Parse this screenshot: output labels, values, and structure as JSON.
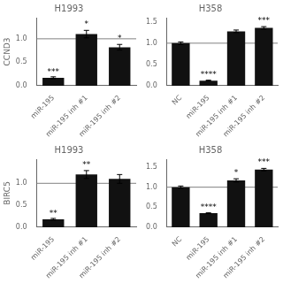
{
  "chart_data": [
    {
      "type": "bar",
      "title": "H1993",
      "ylabel": "CCND3",
      "categories": [
        "miR-195",
        "miR-195 inh #1",
        "miR-195 inh #2"
      ],
      "values": [
        0.17,
        1.1,
        0.82
      ],
      "errors": [
        0.02,
        0.08,
        0.06
      ],
      "color": "#111111",
      "ylim": [
        0,
        1.45
      ],
      "yticks": [
        {
          "value": 0,
          "label": "0.0"
        },
        0.5,
        {
          "value": 1,
          "label": "1.0"
        }
      ],
      "grid": false,
      "hline": 1.0,
      "annotations": [
        {
          "x": "miR-195",
          "y": 0.2,
          "text": "***"
        },
        {
          "x": "miR-195 inh #1",
          "y": 1.22,
          "text": "*"
        },
        {
          "x": "miR-195 inh #2",
          "y": 0.92,
          "text": "*"
        }
      ]
    },
    {
      "type": "bar",
      "title": "H358",
      "categories": [
        "NC",
        "miR-195",
        "miR-195 inh #1",
        "miR-195 inh #2"
      ],
      "values": [
        1.0,
        0.12,
        1.28,
        1.36
      ],
      "errors": [
        0.03,
        0.01,
        0.03,
        0.03
      ],
      "color": "#111111",
      "ylim": [
        0,
        1.6
      ],
      "yticks": [
        {
          "value": 0,
          "label": "0.0"
        },
        0.5,
        {
          "value": 1,
          "label": "1.0"
        },
        1.5
      ],
      "grid": false,
      "hline": 1.0,
      "annotations": [
        {
          "x": "miR-195",
          "y": 0.17,
          "text": "****"
        },
        {
          "x": "miR-195 inh #2",
          "y": 1.42,
          "text": "***"
        }
      ]
    },
    {
      "type": "bar",
      "title": "H1993",
      "ylabel": "BIRC5",
      "categories": [
        "miR-195",
        "miR-195 inh #1",
        "miR-195 inh #2"
      ],
      "values": [
        0.18,
        1.2,
        1.1
      ],
      "errors": [
        0.02,
        0.09,
        0.1
      ],
      "color": "#111111",
      "ylim": [
        0,
        1.55
      ],
      "yticks": [
        {
          "value": 0,
          "label": "0.0"
        },
        0.5,
        {
          "value": 1,
          "label": "1.0"
        }
      ],
      "grid": false,
      "hline": 1.0,
      "annotations": [
        {
          "x": "miR-195",
          "y": 0.22,
          "text": "**"
        },
        {
          "x": "miR-195 inh #1",
          "y": 1.33,
          "text": "**"
        }
      ]
    },
    {
      "type": "bar",
      "title": "H358",
      "categories": [
        "NC",
        "miR-195",
        "miR-195 inh #1",
        "miR-195 inh #2"
      ],
      "values": [
        1.0,
        0.35,
        1.17,
        1.44
      ],
      "errors": [
        0.03,
        0.01,
        0.04,
        0.03
      ],
      "color": "#111111",
      "ylim": [
        0,
        1.7
      ],
      "yticks": [
        {
          "value": 0,
          "label": "0.0"
        },
        0.5,
        {
          "value": 1,
          "label": "1.0"
        },
        1.5
      ],
      "grid": false,
      "hline": 1.0,
      "annotations": [
        {
          "x": "miR-195",
          "y": 0.4,
          "text": "****"
        },
        {
          "x": "miR-195 inh #1",
          "y": 1.25,
          "text": "*"
        },
        {
          "x": "miR-195 inh #2",
          "y": 1.52,
          "text": "***"
        }
      ]
    }
  ]
}
